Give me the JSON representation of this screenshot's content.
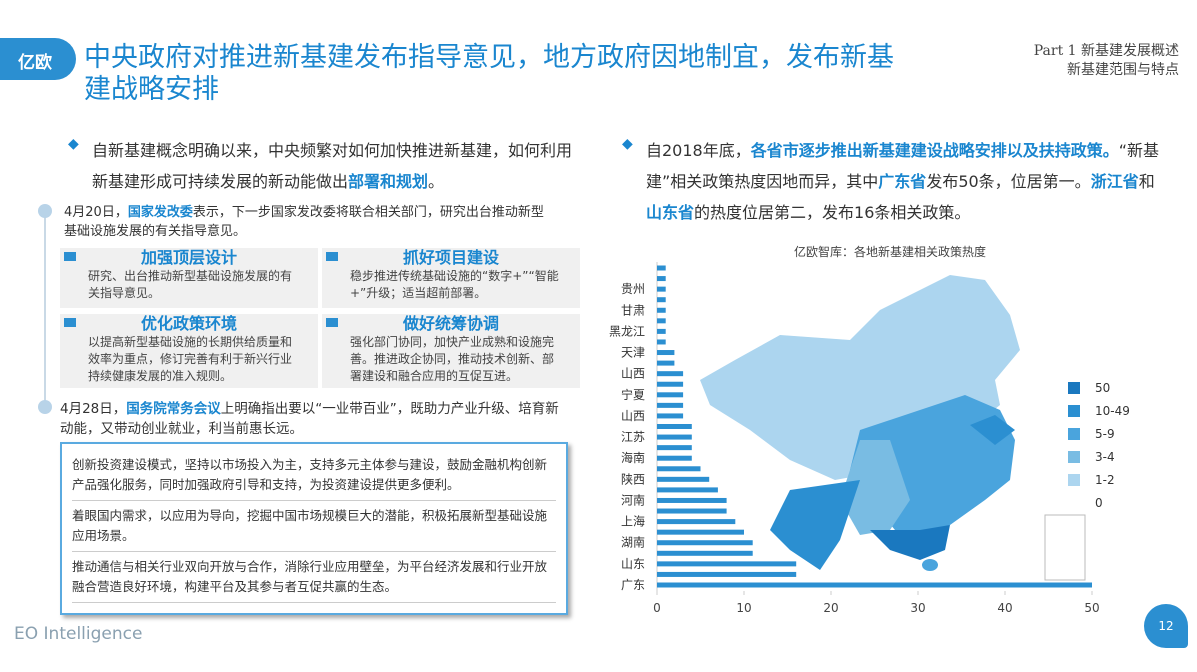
{
  "header": {
    "logo": "亿欧",
    "title": "中央政府对推进新基建发布指导意见，地方政府因地制宜，发布新基建战略安排",
    "section": "Part 1 新基建发展概述",
    "subsection": "新基建范围与特点"
  },
  "left": {
    "intro": [
      {
        "text": "自新基建概念明确以来，中央频繁对如何加快推进新基建，如何利用新基建形成可持续发展的新动能做出"
      },
      {
        "text": "部署和规划",
        "strong": true
      },
      {
        "text": "。"
      }
    ],
    "timeline1": [
      {
        "text": "4月20日，"
      },
      {
        "text": "国家发改委",
        "strong": true
      },
      {
        "text": "表示，下一步国家发改委将联合相关部门，研究出台推动新型基础设施发展的有关指导意见。"
      }
    ],
    "boxes": [
      {
        "title": "加强顶层设计",
        "text": "研究、出台推动新型基础设施发展的有关指导意见。"
      },
      {
        "title": "抓好项目建设",
        "text": "稳步推进传统基础设施的“数字+”“智能+”升级；适当超前部署。"
      },
      {
        "title": "优化政策环境",
        "text": "以提高新型基础设施的长期供给质量和效率为重点，修订完善有利于新兴行业持续健康发展的准入规则。"
      },
      {
        "title": "做好统筹协调",
        "text": "强化部门协同，加快产业成熟和设施完善。推进政企协同，推动技术创新、部署建设和融合应用的互促互进。"
      }
    ],
    "timeline2": [
      {
        "text": "4月28日，"
      },
      {
        "text": "国务院常务会议",
        "strong": true
      },
      {
        "text": "上明确指出要以“一业带百业”，既助力产业升级、培育新动能，又带动创业就业，利当前惠长远。"
      }
    ],
    "measures": [
      "创新投资建设模式，坚持以市场投入为主，支持多元主体参与建设，鼓励金融机构创新产品强化服务，同时加强政府引导和支持，为投资建设提供更多便利。",
      "着眼国内需求，以应用为导向，挖掘中国市场规模巨大的潜能，积极拓展新型基础设施应用场景。",
      "推动通信与相关行业双向开放与合作，消除行业应用壁垒，为平台经济发展和行业开放融合营造良好环境，构建平台及其参与者互促共赢的生态。"
    ]
  },
  "right": {
    "intro": [
      {
        "text": "自2018年底，"
      },
      {
        "text": "各省市逐步推出新基建建设战略安排以及扶持政策。",
        "strong": true
      },
      {
        "text": "“新基建”相关政策热度因地而异，其中"
      },
      {
        "text": "广东省",
        "strong": true
      },
      {
        "text": "发布50条，位居第一。"
      },
      {
        "text": "浙江省",
        "strong": true
      },
      {
        "text": "和"
      },
      {
        "text": "山东省",
        "strong": true
      },
      {
        "text": "的热度位居第二，发布16条相关政策。"
      }
    ]
  },
  "map": {
    "legend": [
      {
        "label": "50",
        "color": "#1a78bf"
      },
      {
        "label": "10-49",
        "color": "#2b8fd1"
      },
      {
        "label": "5-9",
        "color": "#4aa4dd"
      },
      {
        "label": "3-4",
        "color": "#79bce3"
      },
      {
        "label": "1-2",
        "color": "#acd5ef"
      },
      {
        "label": "0",
        "color": "#ffffff"
      }
    ]
  },
  "chart_data": {
    "type": "hbar",
    "title": "亿欧智库：各地新基建相关政策热度",
    "color": "#2b8fd1",
    "categories": [
      null,
      null,
      "贵州",
      null,
      "甘肃",
      null,
      "黑龙江",
      null,
      "天津",
      null,
      "山西",
      null,
      "宁夏",
      null,
      "山西",
      null,
      "江苏",
      null,
      "海南",
      null,
      "陕西",
      null,
      "河南",
      null,
      "上海",
      null,
      "湖南",
      null,
      "山东",
      null,
      "广东"
    ],
    "values": [
      1,
      1,
      1,
      1,
      1,
      1,
      1,
      1,
      2,
      2,
      3,
      3,
      3,
      3,
      3,
      4,
      4,
      4,
      4,
      5,
      6,
      7,
      8,
      8,
      9,
      10,
      11,
      11,
      16,
      16,
      50
    ],
    "xlim": [
      0,
      50
    ],
    "xticks": [
      0,
      10,
      20,
      30,
      40,
      50
    ]
  },
  "footer": {
    "brand": "EO Intelligence",
    "page": "12"
  }
}
